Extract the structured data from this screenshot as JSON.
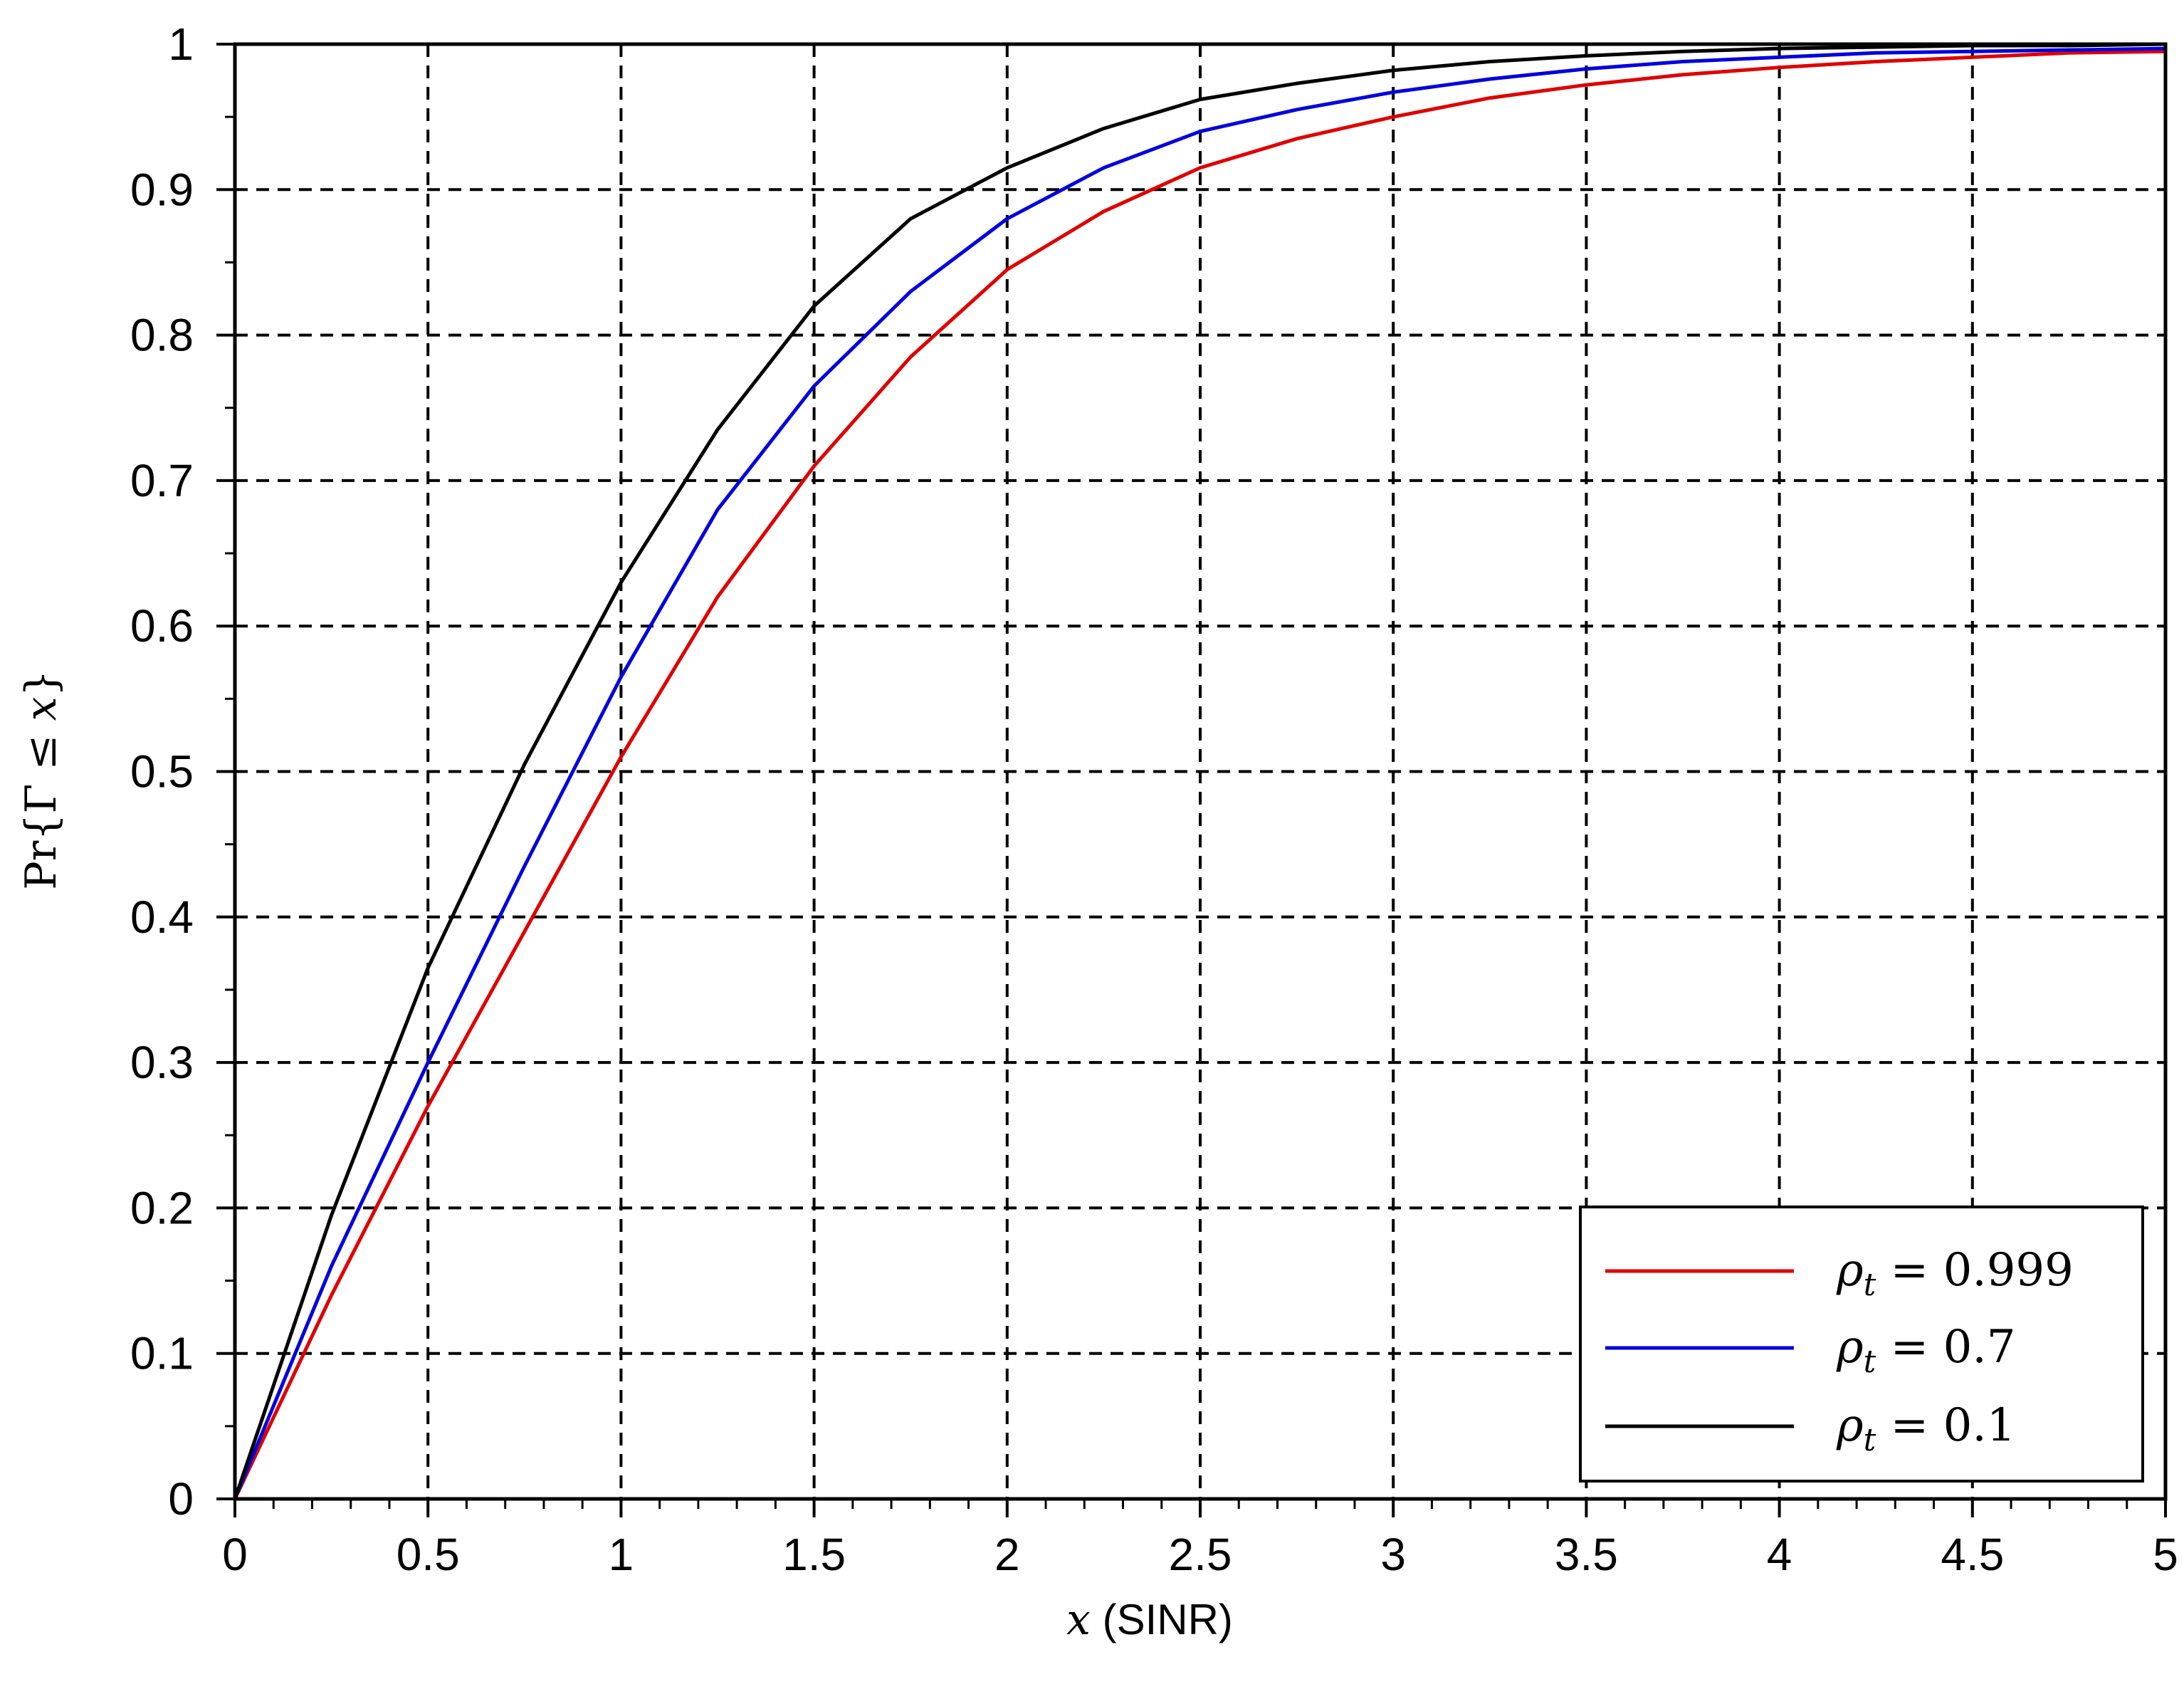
{
  "chart_data": {
    "type": "line",
    "title": "",
    "xlabel": "x (SINR)",
    "ylabel": "Pr{Γ ≤ x}",
    "xlim": [
      0,
      5
    ],
    "ylim": [
      0,
      1
    ],
    "xticks": [
      "0",
      "0.5",
      "1",
      "1.5",
      "2",
      "2.5",
      "3",
      "3.5",
      "4",
      "4.5",
      "5"
    ],
    "yticks": [
      "0",
      "0.1",
      "0.2",
      "0.3",
      "0.4",
      "0.5",
      "0.6",
      "0.7",
      "0.8",
      "0.9",
      "1"
    ],
    "grid": true,
    "legend_position": "bottom-right",
    "x": [
      0,
      0.25,
      0.5,
      0.75,
      1,
      1.25,
      1.5,
      1.75,
      2,
      2.25,
      2.5,
      2.75,
      3,
      3.25,
      3.5,
      3.75,
      4,
      4.25,
      4.5,
      4.75,
      5
    ],
    "series": [
      {
        "name": "ρ_t = 0.999",
        "color": "#e00000",
        "values": [
          0,
          0.14,
          0.27,
          0.39,
          0.51,
          0.62,
          0.71,
          0.785,
          0.845,
          0.885,
          0.915,
          0.935,
          0.95,
          0.963,
          0.972,
          0.979,
          0.984,
          0.988,
          0.991,
          0.994,
          0.995
        ]
      },
      {
        "name": "ρ_t = 0.7",
        "color": "#0000e0",
        "values": [
          0,
          0.16,
          0.3,
          0.435,
          0.565,
          0.68,
          0.765,
          0.83,
          0.88,
          0.915,
          0.94,
          0.955,
          0.967,
          0.976,
          0.983,
          0.988,
          0.991,
          0.994,
          0.995,
          0.996,
          0.997
        ]
      },
      {
        "name": "ρ_t = 0.1",
        "color": "#000000",
        "values": [
          0,
          0.195,
          0.365,
          0.505,
          0.63,
          0.735,
          0.82,
          0.88,
          0.915,
          0.942,
          0.962,
          0.973,
          0.982,
          0.988,
          0.992,
          0.995,
          0.997,
          0.998,
          0.999,
          0.999,
          1.0
        ]
      }
    ]
  },
  "axis": {
    "xlabel_var": "x",
    "xlabel_unit": " (SINR)",
    "ylabel_pre": "Pr{Γ ≤ ",
    "ylabel_var": "x",
    "ylabel_post": "}"
  },
  "legend": [
    {
      "symbol": "ρ",
      "sub": "t",
      "value": " = 0.999",
      "color": "#e00000"
    },
    {
      "symbol": "ρ",
      "sub": "t",
      "value": " = 0.7",
      "color": "#0000e0"
    },
    {
      "symbol": "ρ",
      "sub": "t",
      "value": " = 0.1",
      "color": "#000000"
    }
  ]
}
